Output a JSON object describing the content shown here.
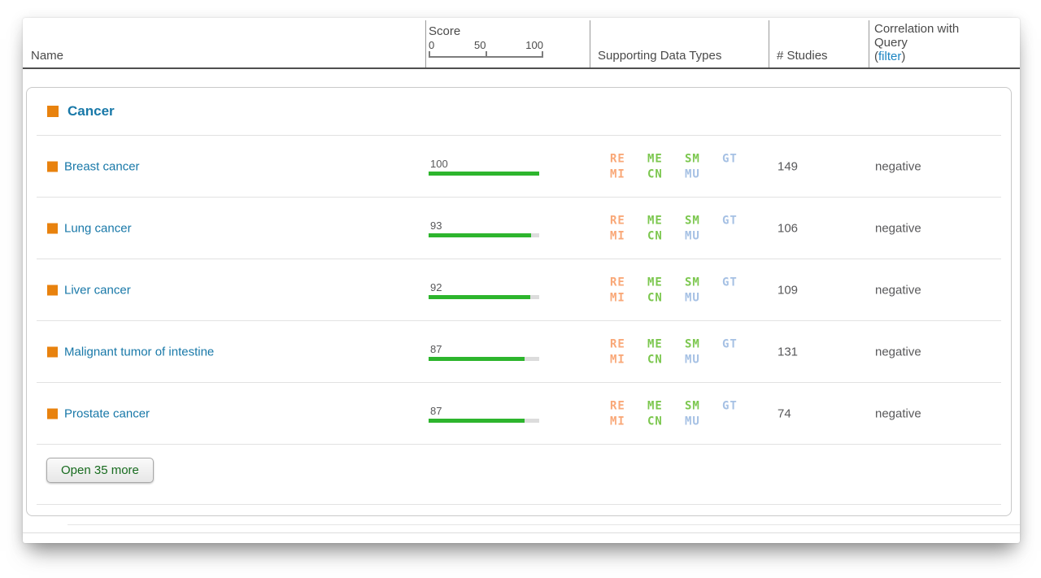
{
  "table": {
    "columns": {
      "name": "Name",
      "score": {
        "label": "Score",
        "tick0": "0",
        "tick50": "50",
        "tick100": "100"
      },
      "supporting": "Supporting Data Types",
      "studies": "# Studies",
      "correlation": {
        "line1": "Correlation with",
        "line2": "Query",
        "open_paren": "(",
        "filter_link": "filter",
        "close_paren": ")"
      }
    },
    "group": {
      "label": "Cancer"
    },
    "rows": [
      {
        "name": "Breast cancer",
        "score": 100,
        "score_label": "100",
        "studies": "149",
        "correlation": "negative"
      },
      {
        "name": "Lung cancer",
        "score": 93,
        "score_label": "93",
        "studies": "106",
        "correlation": "negative"
      },
      {
        "name": "Liver cancer",
        "score": 92,
        "score_label": "92",
        "studies": "109",
        "correlation": "negative"
      },
      {
        "name": "Malignant tumor of intestine",
        "score": 87,
        "score_label": "87",
        "studies": "131",
        "correlation": "negative"
      },
      {
        "name": "Prostate cancer",
        "score": 87,
        "score_label": "87",
        "studies": "74",
        "correlation": "negative"
      }
    ],
    "data_types": {
      "r1c1": "RE",
      "r1c2": "ME",
      "r1c3": "SM",
      "r1c4": "GT",
      "r2c1": "MI",
      "r2c2": "CN",
      "r2c3": "MU"
    },
    "open_more_button": "Open 35 more"
  },
  "colors": {
    "link_teal": "#1878a8",
    "orange_square": "#e8820e",
    "score_bar_green": "#2db52d",
    "score_bar_track": "#dcdcdc",
    "dt_orange": "#f9a878",
    "dt_green": "#7cc74f",
    "dt_blue": "#a6c1e4",
    "filter_link_blue": "#1b84c2",
    "text_gray": "#58585a"
  }
}
